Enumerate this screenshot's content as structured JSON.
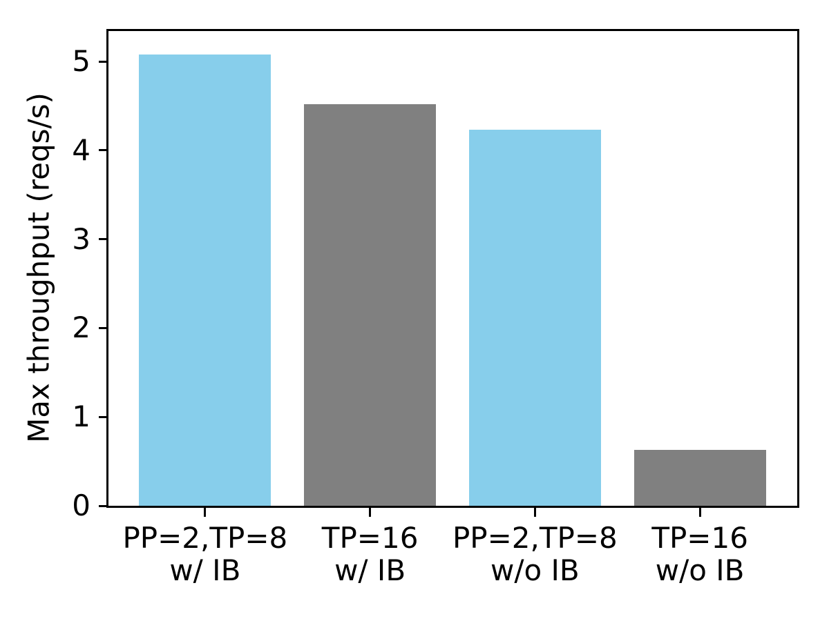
{
  "chart_data": {
    "type": "bar",
    "title": "",
    "xlabel": "",
    "ylabel": "Max throughput (reqs/s)",
    "categories": [
      "PP=2,TP=8\nw/ IB",
      "TP=16\nw/ IB",
      "PP=2,TP=8\nw/o IB",
      "TP=16\nw/o IB"
    ],
    "values": [
      5.08,
      4.52,
      4.23,
      0.63
    ],
    "bar_colors": [
      "#87CEEB",
      "#808080",
      "#87CEEB",
      "#808080"
    ],
    "yticks": [
      0,
      1,
      2,
      3,
      4,
      5
    ],
    "ylim": [
      0,
      5.35
    ],
    "xlim": [
      -0.59,
      3.59
    ],
    "bar_width": 0.8,
    "grid": false,
    "legend": "none",
    "axis_color": "#000000",
    "background_color": "#ffffff"
  }
}
